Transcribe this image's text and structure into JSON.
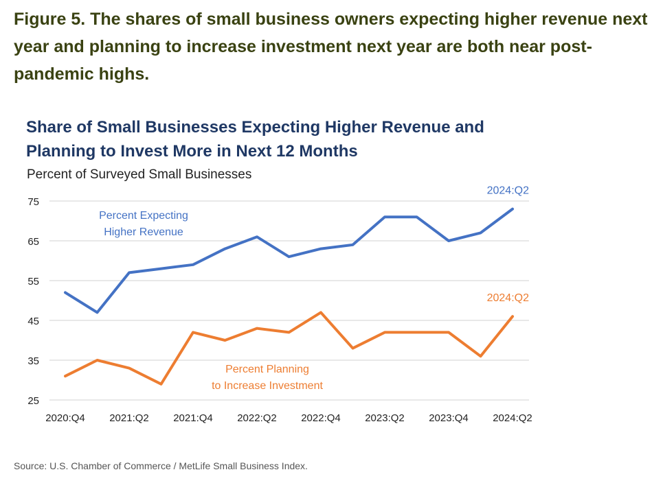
{
  "figure_title": "Figure 5. The shares of small business owners expecting higher revenue next year and planning to increase investment next year are both near post-pandemic highs.",
  "source": "Source: U.S. Chamber of Commerce / MetLife Small Business Index.",
  "chart_data": {
    "type": "line",
    "title": "Share of Small Businesses Expecting Higher Revenue and Planning to Invest More in Next 12 Months",
    "ylabel": "Percent of Surveyed Small Businesses",
    "xlabel": "",
    "x": [
      "2020:Q4",
      "2021:Q1",
      "2021:Q2",
      "2021:Q3",
      "2021:Q4",
      "2022:Q1",
      "2022:Q2",
      "2022:Q3",
      "2022:Q4",
      "2023:Q1",
      "2023:Q2",
      "2023:Q3",
      "2023:Q4",
      "2024:Q1",
      "2024:Q2"
    ],
    "x_tick_labels": [
      "2020:Q4",
      "2021:Q2",
      "2021:Q4",
      "2022:Q2",
      "2022:Q4",
      "2023:Q2",
      "2023:Q4",
      "2024:Q2"
    ],
    "y_ticks": [
      25,
      35,
      45,
      55,
      65,
      75
    ],
    "ylim": [
      25,
      75
    ],
    "grid": true,
    "series": [
      {
        "name": "Percent Expecting Higher Revenue",
        "label_lines": [
          "Percent Expecting",
          "Higher Revenue"
        ],
        "end_label": "2024:Q2",
        "color": "#4472c4",
        "values": [
          52,
          47,
          57,
          58,
          59,
          63,
          66,
          61,
          63,
          64,
          71,
          71,
          65,
          67,
          73
        ]
      },
      {
        "name": "Percent Planning to Increase Investment",
        "label_lines": [
          "Percent Planning",
          "to Increase Investment"
        ],
        "end_label": "2024:Q2",
        "color": "#ed7d31",
        "values": [
          31,
          35,
          33,
          29,
          42,
          40,
          43,
          42,
          47,
          38,
          42,
          42,
          42,
          36,
          46
        ]
      }
    ]
  }
}
